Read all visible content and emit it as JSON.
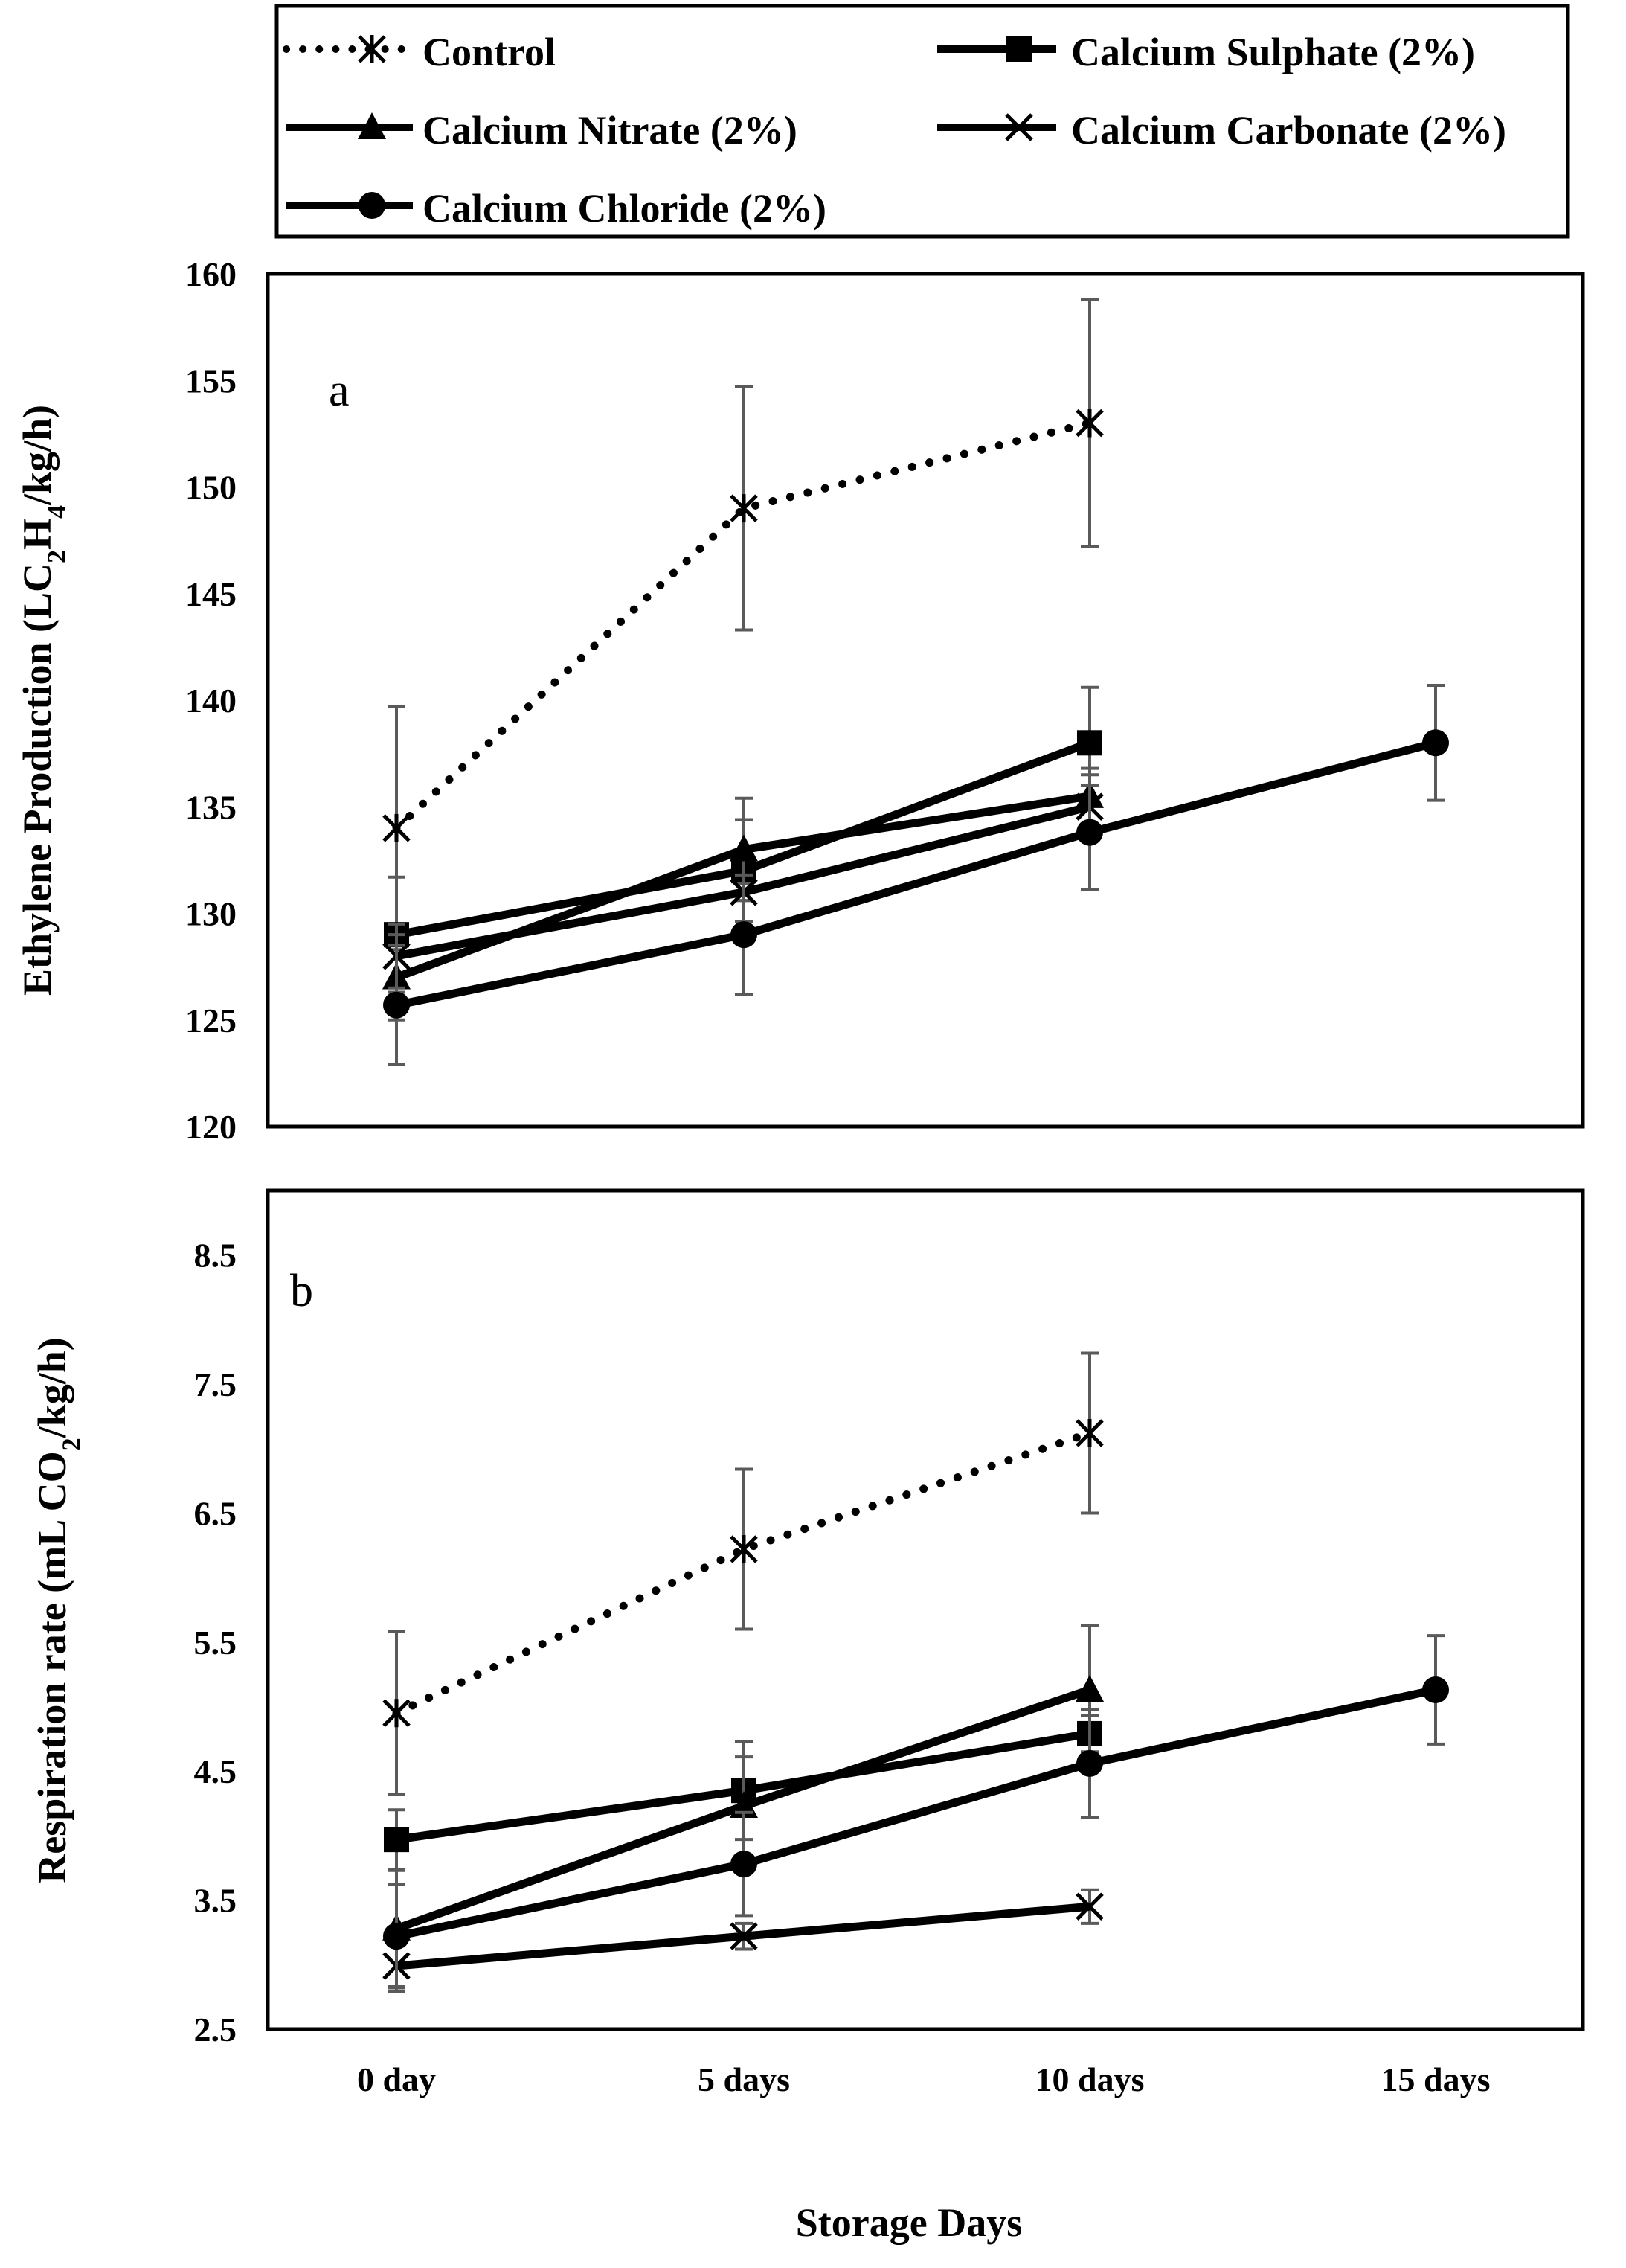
{
  "legend": {
    "entries": [
      {
        "label": "Control",
        "marker": "asterisk",
        "dash": "dotted"
      },
      {
        "label": "Calcium Sulphate (2%)",
        "marker": "square",
        "dash": "solid"
      },
      {
        "label": "Calcium Nitrate (2%)",
        "marker": "triangle",
        "dash": "solid"
      },
      {
        "label": "Calcium Carbonate (2%)",
        "marker": "x",
        "dash": "solid"
      },
      {
        "label": "Calcium Chloride (2%)",
        "marker": "circle",
        "dash": "solid"
      }
    ]
  },
  "colors": {
    "line": "#000000",
    "error_bar": "#5a5a5a",
    "background": "#ffffff"
  },
  "chart_data": [
    {
      "type": "line",
      "panel_label": "a",
      "ylabel_parts": [
        "Ethylene Production (LC",
        "2",
        "H",
        "4",
        "/kg/h)"
      ],
      "ylim": [
        120,
        160
      ],
      "yticks": [
        "120",
        "125",
        "130",
        "135",
        "140",
        "145",
        "150",
        "155",
        "160"
      ],
      "categories": [
        "0 day",
        "5 days",
        "10 days",
        "15 days"
      ],
      "series": [
        {
          "name": "Control",
          "marker": "asterisk",
          "dash": "dotted",
          "values": [
            134,
            149,
            153,
            null
          ],
          "errors": [
            5.7,
            5.7,
            5.8,
            null
          ]
        },
        {
          "name": "Calcium Sulphate (2%)",
          "marker": "square",
          "dash": "solid",
          "values": [
            129,
            132,
            138,
            null
          ],
          "errors": [
            2.7,
            2.4,
            2.6,
            null
          ]
        },
        {
          "name": "Calcium Nitrate (2%)",
          "marker": "triangle",
          "dash": "solid",
          "values": [
            127,
            133,
            135.5,
            null
          ],
          "errors": [
            2.0,
            2.4,
            1.3,
            null
          ]
        },
        {
          "name": "Calcium Carbonate (2%)",
          "marker": "x",
          "dash": "solid",
          "values": [
            128,
            131,
            135,
            null
          ],
          "errors": [
            1.5,
            0.4,
            1.0,
            null
          ]
        },
        {
          "name": "Calcium Chloride (2%)",
          "marker": "circle",
          "dash": "solid",
          "values": [
            125.7,
            129,
            133.8,
            138
          ],
          "errors": [
            2.8,
            2.8,
            2.7,
            2.7
          ]
        }
      ]
    },
    {
      "type": "line",
      "panel_label": "b",
      "ylabel_parts": [
        "Respiration rate (mL CO",
        "2",
        "/kg/h)",
        "",
        ""
      ],
      "ylim": [
        2.5,
        9.0
      ],
      "yticks": [
        "2.5",
        "3.5",
        "4.5",
        "5.5",
        "6.5",
        "7.5",
        "8.5"
      ],
      "ytick_values": [
        2.5,
        3.5,
        4.5,
        5.5,
        6.5,
        7.5,
        8.5
      ],
      "categories": [
        "0 day",
        "5 days",
        "10 days",
        "15 days"
      ],
      "series": [
        {
          "name": "Control",
          "marker": "asterisk",
          "dash": "dotted",
          "values": [
            4.95,
            6.22,
            7.12,
            null
          ],
          "errors": [
            0.63,
            0.62,
            0.62,
            null
          ]
        },
        {
          "name": "Calcium Sulphate (2%)",
          "marker": "square",
          "dash": "solid",
          "values": [
            3.97,
            4.35,
            4.79,
            null
          ],
          "errors": [
            0.23,
            0.38,
            0.14,
            null
          ]
        },
        {
          "name": "Calcium Nitrate (2%)",
          "marker": "triangle",
          "dash": "solid",
          "values": [
            3.28,
            4.23,
            5.13,
            null
          ],
          "errors": [
            0.45,
            0.38,
            0.5,
            null
          ]
        },
        {
          "name": "Calcium Carbonate (2%)",
          "marker": "x",
          "dash": "solid",
          "values": [
            2.99,
            3.22,
            3.45,
            null
          ],
          "errors": [
            0.2,
            0.1,
            0.13,
            null
          ]
        },
        {
          "name": "Calcium Chloride (2%)",
          "marker": "circle",
          "dash": "solid",
          "values": [
            3.22,
            3.78,
            4.56,
            5.13
          ],
          "errors": [
            0.4,
            0.4,
            0.42,
            0.42
          ]
        }
      ]
    }
  ],
  "xlabel": "Storage Days"
}
